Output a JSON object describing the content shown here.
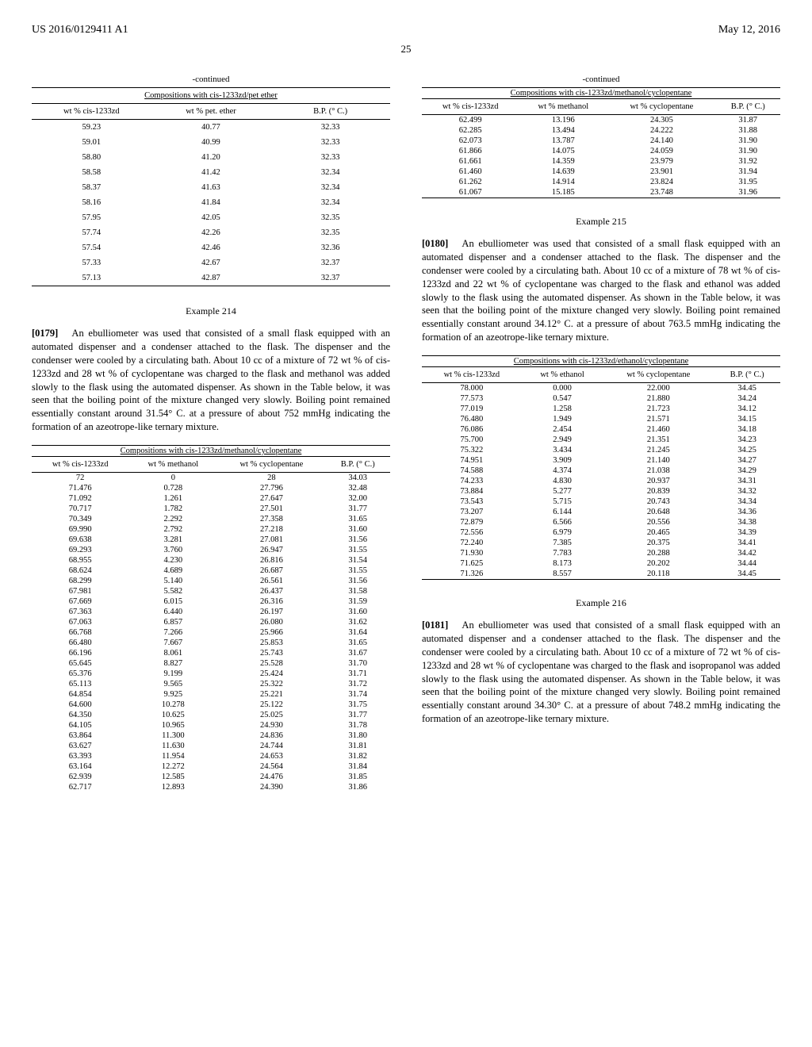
{
  "header": {
    "pub_no": "US 2016/0129411 A1",
    "pub_date": "May 12, 2016",
    "page": "25"
  },
  "left": {
    "cont1": {
      "continued": "-continued",
      "title": "Compositions with cis-1233zd/pet ether",
      "headers": [
        "wt % cis-1233zd",
        "wt % pet. ether",
        "B.P. (° C.)"
      ],
      "rows": [
        [
          "59.23",
          "40.77",
          "32.33"
        ],
        [
          "59.01",
          "40.99",
          "32.33"
        ],
        [
          "58.80",
          "41.20",
          "32.33"
        ],
        [
          "58.58",
          "41.42",
          "32.34"
        ],
        [
          "58.37",
          "41.63",
          "32.34"
        ],
        [
          "58.16",
          "41.84",
          "32.34"
        ],
        [
          "57.95",
          "42.05",
          "32.35"
        ],
        [
          "57.74",
          "42.26",
          "32.35"
        ],
        [
          "57.54",
          "42.46",
          "32.36"
        ],
        [
          "57.33",
          "42.67",
          "32.37"
        ],
        [
          "57.13",
          "42.87",
          "32.37"
        ]
      ]
    },
    "ex214": {
      "title": "Example 214",
      "para_num": "[0179]",
      "para": "An ebulliometer was used that consisted of a small flask equipped with an automated dispenser and a condenser attached to the flask. The dispenser and the condenser were cooled by a circulating bath. About 10 cc of a mixture of 72 wt % of cis-1233zd and 28 wt % of cyclopentane was charged to the flask and methanol was added slowly to the flask using the automated dispenser. As shown in the Table below, it was seen that the boiling point of the mixture changed very slowly. Boiling point remained essentially constant around 31.54° C. at a pressure of about 752 mmHg indicating the formation of an azeotrope-like ternary mixture."
    },
    "table214": {
      "title": "Compositions with cis-1233zd/methanol/cyclopentane",
      "headers": [
        "wt % cis-1233zd",
        "wt % methanol",
        "wt % cyclopentane",
        "B.P. (° C.)"
      ],
      "rows": [
        [
          "72",
          "0",
          "28",
          "34.03"
        ],
        [
          "71.476",
          "0.728",
          "27.796",
          "32.48"
        ],
        [
          "71.092",
          "1.261",
          "27.647",
          "32.00"
        ],
        [
          "70.717",
          "1.782",
          "27.501",
          "31.77"
        ],
        [
          "70.349",
          "2.292",
          "27.358",
          "31.65"
        ],
        [
          "69.990",
          "2.792",
          "27.218",
          "31.60"
        ],
        [
          "69.638",
          "3.281",
          "27.081",
          "31.56"
        ],
        [
          "69.293",
          "3.760",
          "26.947",
          "31.55"
        ],
        [
          "68.955",
          "4.230",
          "26.816",
          "31.54"
        ],
        [
          "68.624",
          "4.689",
          "26.687",
          "31.55"
        ],
        [
          "68.299",
          "5.140",
          "26.561",
          "31.56"
        ],
        [
          "67.981",
          "5.582",
          "26.437",
          "31.58"
        ],
        [
          "67.669",
          "6.015",
          "26.316",
          "31.59"
        ],
        [
          "67.363",
          "6.440",
          "26.197",
          "31.60"
        ],
        [
          "67.063",
          "6.857",
          "26.080",
          "31.62"
        ],
        [
          "66.768",
          "7.266",
          "25.966",
          "31.64"
        ],
        [
          "66.480",
          "7.667",
          "25.853",
          "31.65"
        ],
        [
          "66.196",
          "8.061",
          "25.743",
          "31.67"
        ],
        [
          "65.645",
          "8.827",
          "25.528",
          "31.70"
        ],
        [
          "65.376",
          "9.199",
          "25.424",
          "31.71"
        ],
        [
          "65.113",
          "9.565",
          "25.322",
          "31.72"
        ],
        [
          "64.854",
          "9.925",
          "25.221",
          "31.74"
        ],
        [
          "64.600",
          "10.278",
          "25.122",
          "31.75"
        ],
        [
          "64.350",
          "10.625",
          "25.025",
          "31.77"
        ],
        [
          "64.105",
          "10.965",
          "24.930",
          "31.78"
        ],
        [
          "63.864",
          "11.300",
          "24.836",
          "31.80"
        ],
        [
          "63.627",
          "11.630",
          "24.744",
          "31.81"
        ],
        [
          "63.393",
          "11.954",
          "24.653",
          "31.82"
        ],
        [
          "63.164",
          "12.272",
          "24.564",
          "31.84"
        ],
        [
          "62.939",
          "12.585",
          "24.476",
          "31.85"
        ],
        [
          "62.717",
          "12.893",
          "24.390",
          "31.86"
        ]
      ]
    }
  },
  "right": {
    "cont2": {
      "continued": "-continued",
      "title": "Compositions with cis-1233zd/methanol/cyclopentane",
      "headers": [
        "wt % cis-1233zd",
        "wt % methanol",
        "wt % cyclopentane",
        "B.P. (° C.)"
      ],
      "rows": [
        [
          "62.499",
          "13.196",
          "24.305",
          "31.87"
        ],
        [
          "62.285",
          "13.494",
          "24.222",
          "31.88"
        ],
        [
          "62.073",
          "13.787",
          "24.140",
          "31.90"
        ],
        [
          "61.866",
          "14.075",
          "24.059",
          "31.90"
        ],
        [
          "61.661",
          "14.359",
          "23.979",
          "31.92"
        ],
        [
          "61.460",
          "14.639",
          "23.901",
          "31.94"
        ],
        [
          "61.262",
          "14.914",
          "23.824",
          "31.95"
        ],
        [
          "61.067",
          "15.185",
          "23.748",
          "31.96"
        ]
      ]
    },
    "ex215": {
      "title": "Example 215",
      "para_num": "[0180]",
      "para": "An ebulliometer was used that consisted of a small flask equipped with an automated dispenser and a condenser attached to the flask. The dispenser and the condenser were cooled by a circulating bath. About 10 cc of a mixture of 78 wt % of cis-1233zd and 22 wt % of cyclopentane was charged to the flask and ethanol was added slowly to the flask using the automated dispenser. As shown in the Table below, it was seen that the boiling point of the mixture changed very slowly. Boiling point remained essentially constant around 34.12° C. at a pressure of about 763.5 mmHg indicating the formation of an azeotrope-like ternary mixture."
    },
    "table215": {
      "title": "Compositions with cis-1233zd/ethanol/cyclopentane",
      "headers": [
        "wt % cis-1233zd",
        "wt % ethanol",
        "wt % cyclopentane",
        "B.P. (° C.)"
      ],
      "rows": [
        [
          "78.000",
          "0.000",
          "22.000",
          "34.45"
        ],
        [
          "77.573",
          "0.547",
          "21.880",
          "34.24"
        ],
        [
          "77.019",
          "1.258",
          "21.723",
          "34.12"
        ],
        [
          "76.480",
          "1.949",
          "21.571",
          "34.15"
        ],
        [
          "76.086",
          "2.454",
          "21.460",
          "34.18"
        ],
        [
          "75.700",
          "2.949",
          "21.351",
          "34.23"
        ],
        [
          "75.322",
          "3.434",
          "21.245",
          "34.25"
        ],
        [
          "74.951",
          "3.909",
          "21.140",
          "34.27"
        ],
        [
          "74.588",
          "4.374",
          "21.038",
          "34.29"
        ],
        [
          "74.233",
          "4.830",
          "20.937",
          "34.31"
        ],
        [
          "73.884",
          "5.277",
          "20.839",
          "34.32"
        ],
        [
          "73.543",
          "5.715",
          "20.743",
          "34.34"
        ],
        [
          "73.207",
          "6.144",
          "20.648",
          "34.36"
        ],
        [
          "72.879",
          "6.566",
          "20.556",
          "34.38"
        ],
        [
          "72.556",
          "6.979",
          "20.465",
          "34.39"
        ],
        [
          "72.240",
          "7.385",
          "20.375",
          "34.41"
        ],
        [
          "71.930",
          "7.783",
          "20.288",
          "34.42"
        ],
        [
          "71.625",
          "8.173",
          "20.202",
          "34.44"
        ],
        [
          "71.326",
          "8.557",
          "20.118",
          "34.45"
        ]
      ]
    },
    "ex216": {
      "title": "Example 216",
      "para_num": "[0181]",
      "para": "An ebulliometer was used that consisted of a small flask equipped with an automated dispenser and a condenser attached to the flask. The dispenser and the condenser were cooled by a circulating bath. About 10 cc of a mixture of 72 wt % of cis-1233zd and 28 wt % of cyclopentane was charged to the flask and isopropanol was added slowly to the flask using the automated dispenser. As shown in the Table below, it was seen that the boiling point of the mixture changed very slowly. Boiling point remained essentially constant around 34.30° C. at a pressure of about 748.2 mmHg indicating the formation of an azeotrope-like ternary mixture."
    }
  }
}
